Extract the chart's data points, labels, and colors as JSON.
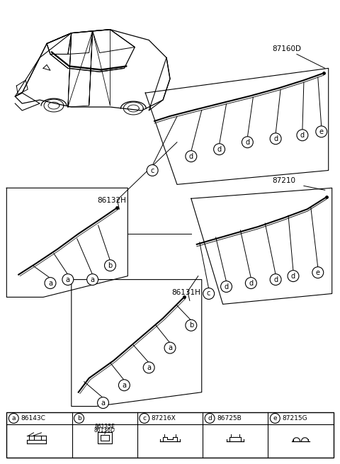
{
  "bg_color": "#ffffff",
  "part_labels": {
    "a": "86143C",
    "b": "86135E\n86136D",
    "c": "87216X",
    "d": "86725B",
    "e": "87215G"
  },
  "label_87160D": "87160D",
  "label_87210": "87210",
  "label_86132H": "86132H",
  "label_86131H": "86131H",
  "legend_header": [
    "a|86143C",
    "b|86135E\n86136D",
    "c|87216X",
    "d|86725B",
    "e|87215G"
  ]
}
